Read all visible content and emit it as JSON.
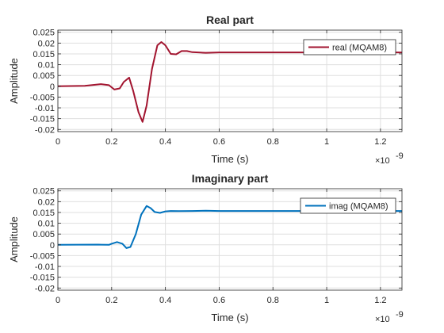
{
  "chart_data": [
    {
      "type": "line",
      "title": "Real part",
      "xlabel": "Time (s)",
      "ylabel": "Amplitude",
      "x_exponent_label": "10",
      "x_exponent_power": "-9",
      "xlim": [
        0,
        1.28
      ],
      "ylim": [
        -0.021,
        0.026
      ],
      "x_ticks": [
        "0",
        "0.2",
        "0.4",
        "0.6",
        "0.8",
        "1",
        "1.2"
      ],
      "y_ticks": [
        "0.025",
        "0.02",
        "0.015",
        "0.01",
        "0.005",
        "0",
        "-0.005",
        "-0.01",
        "-0.015",
        "-0.02"
      ],
      "grid": true,
      "legend_position": "top-right",
      "series": [
        {
          "name": "real (MQAM8)",
          "color": "#a2142f",
          "x": [
            0,
            0.1,
            0.16,
            0.19,
            0.21,
            0.23,
            0.245,
            0.265,
            0.28,
            0.3,
            0.315,
            0.33,
            0.35,
            0.37,
            0.385,
            0.4,
            0.42,
            0.44,
            0.46,
            0.48,
            0.5,
            0.55,
            0.6,
            0.7,
            0.8,
            0.9,
            1.0,
            1.1,
            1.2,
            1.28
          ],
          "y": [
            0,
            0.0002,
            0.001,
            0.0005,
            -0.0015,
            -0.001,
            0.002,
            0.004,
            -0.002,
            -0.012,
            -0.0165,
            -0.009,
            0.008,
            0.019,
            0.0205,
            0.019,
            0.015,
            0.0148,
            0.0163,
            0.0163,
            0.0158,
            0.0155,
            0.0157,
            0.0157,
            0.0157,
            0.0157,
            0.0157,
            0.0157,
            0.0157,
            0.0157
          ]
        }
      ]
    },
    {
      "type": "line",
      "title": "Imaginary part",
      "xlabel": "Time (s)",
      "ylabel": "Amplitude",
      "x_exponent_label": "10",
      "x_exponent_power": "-9",
      "xlim": [
        0,
        1.28
      ],
      "ylim": [
        -0.021,
        0.026
      ],
      "x_ticks": [
        "0",
        "0.2",
        "0.4",
        "0.6",
        "0.8",
        "1",
        "1.2"
      ],
      "y_ticks": [
        "0.025",
        "0.02",
        "0.015",
        "0.01",
        "0.005",
        "0",
        "-0.005",
        "-0.01",
        "-0.015",
        "-0.02"
      ],
      "grid": true,
      "legend_position": "top-right",
      "series": [
        {
          "name": "imag (MQAM8)",
          "color": "#0072bd",
          "x": [
            0,
            0.15,
            0.19,
            0.2,
            0.22,
            0.24,
            0.255,
            0.27,
            0.29,
            0.31,
            0.33,
            0.345,
            0.36,
            0.38,
            0.4,
            0.42,
            0.45,
            0.5,
            0.55,
            0.6,
            0.8,
            1.0,
            1.2,
            1.28
          ],
          "y": [
            0,
            0.0001,
            0,
            0.0005,
            0.0013,
            0.0005,
            -0.0015,
            -0.001,
            0.005,
            0.014,
            0.018,
            0.017,
            0.0152,
            0.0148,
            0.0155,
            0.0157,
            0.0156,
            0.0157,
            0.0158,
            0.0157,
            0.0157,
            0.0157,
            0.0157,
            0.0157
          ]
        }
      ]
    }
  ]
}
